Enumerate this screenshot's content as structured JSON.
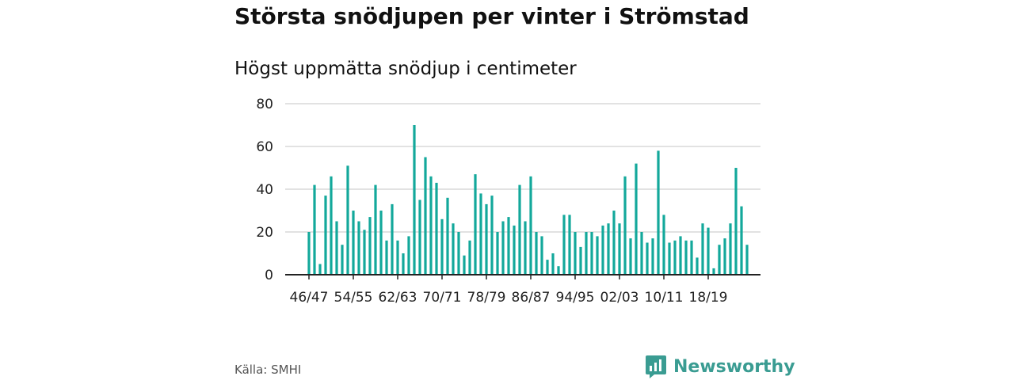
{
  "title": "Största snödjupen per vinter i Strömstad",
  "subtitle": "Högst uppmätta snödjup i centimeter",
  "source": "Källa: SMHI",
  "brand": {
    "name": "Newsworthy",
    "icon": "bar-chart-speech-bubble-icon"
  },
  "colors": {
    "bar": "#13a89b",
    "grid": "#d9d9d9",
    "axis": "#222222",
    "brand": "#3a9c92"
  },
  "chart_data": {
    "type": "bar",
    "title": "Största snödjupen per vinter i Strömstad",
    "subtitle": "Högst uppmätta snödjup i centimeter",
    "xlabel": "",
    "ylabel": "",
    "ylim": [
      0,
      80
    ],
    "yticks": [
      0,
      20,
      40,
      60,
      80
    ],
    "grid": true,
    "x_tick_labels": [
      "46/47",
      "54/55",
      "62/63",
      "70/71",
      "78/79",
      "86/87",
      "94/95",
      "02/03",
      "10/11",
      "18/19"
    ],
    "categories": [
      "46/47",
      "47/48",
      "48/49",
      "49/50",
      "50/51",
      "51/52",
      "52/53",
      "53/54",
      "54/55",
      "55/56",
      "56/57",
      "57/58",
      "58/59",
      "59/60",
      "60/61",
      "61/62",
      "62/63",
      "63/64",
      "64/65",
      "65/66",
      "66/67",
      "67/68",
      "68/69",
      "69/70",
      "70/71",
      "71/72",
      "72/73",
      "73/74",
      "74/75",
      "75/76",
      "76/77",
      "77/78",
      "78/79",
      "79/80",
      "80/81",
      "81/82",
      "82/83",
      "83/84",
      "84/85",
      "85/86",
      "86/87",
      "87/88",
      "88/89",
      "89/90",
      "90/91",
      "91/92",
      "92/93",
      "93/94",
      "94/95",
      "95/96",
      "96/97",
      "97/98",
      "98/99",
      "99/00",
      "00/01",
      "01/02",
      "02/03",
      "03/04",
      "04/05",
      "05/06",
      "06/07",
      "07/08",
      "08/09",
      "09/10",
      "10/11",
      "11/12",
      "12/13",
      "13/14",
      "14/15",
      "15/16",
      "16/17",
      "17/18",
      "18/19",
      "19/20",
      "20/21",
      "21/22",
      "22/23",
      "23/24",
      "24/25",
      "25/26"
    ],
    "values": [
      20,
      42,
      5,
      37,
      46,
      25,
      14,
      51,
      30,
      25,
      21,
      27,
      42,
      30,
      16,
      33,
      16,
      10,
      18,
      70,
      35,
      55,
      46,
      43,
      26,
      36,
      24,
      20,
      9,
      16,
      47,
      38,
      33,
      37,
      20,
      25,
      27,
      23,
      42,
      25,
      46,
      20,
      18,
      7,
      10,
      4,
      28,
      28,
      20,
      13,
      20,
      20,
      18,
      23,
      24,
      30,
      24,
      46,
      17,
      52,
      20,
      15,
      17,
      58,
      28,
      15,
      16,
      18,
      16,
      16,
      8,
      24,
      22,
      3,
      14,
      17,
      24,
      50,
      32,
      14
    ]
  }
}
